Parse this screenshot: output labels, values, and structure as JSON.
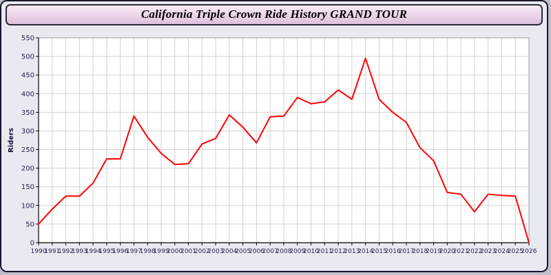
{
  "page": {
    "title": "California Triple Crown Ride History GRAND TOUR"
  },
  "chart_data": {
    "type": "line",
    "title": "California Triple Crown Ride History GRAND TOUR",
    "xlabel": "",
    "ylabel": "Riders",
    "ylim": [
      0,
      550
    ],
    "yticks": [
      0,
      50,
      100,
      150,
      200,
      250,
      300,
      350,
      400,
      450,
      500,
      550
    ],
    "grid": true,
    "legend_position": "none",
    "line_color": "#ff0000",
    "grid_color": "#d2d2d2",
    "plot_bg": "#ffffff",
    "x": [
      1990,
      1991,
      1992,
      1993,
      1994,
      1995,
      1996,
      1997,
      1998,
      1999,
      2000,
      2001,
      2002,
      2003,
      2004,
      2005,
      2006,
      2007,
      2008,
      2009,
      2010,
      2011,
      2012,
      2013,
      2014,
      2015,
      2016,
      2017,
      2018,
      2019,
      2020,
      2021,
      2022,
      2023,
      2024,
      2025,
      2026
    ],
    "values": [
      50,
      90,
      125,
      125,
      160,
      225,
      225,
      340,
      283,
      240,
      210,
      212,
      265,
      280,
      343,
      310,
      268,
      338,
      340,
      390,
      373,
      378,
      410,
      385,
      495,
      385,
      350,
      323,
      255,
      220,
      135,
      130,
      83,
      130,
      127,
      125,
      0
    ]
  }
}
